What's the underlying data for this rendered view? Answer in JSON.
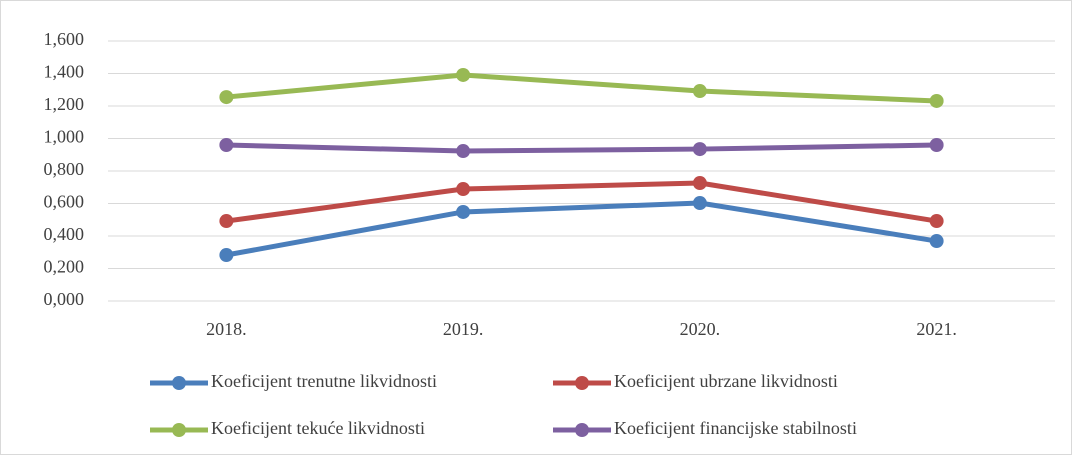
{
  "chart_data": {
    "type": "line",
    "categories": [
      "2018.",
      "2019.",
      "2020.",
      "2021."
    ],
    "series": [
      {
        "name": "Koeficijent trenutne likvidnosti",
        "color": "#4a7ebb",
        "values": [
          0.283,
          0.548,
          0.603,
          0.369
        ]
      },
      {
        "name": "Koeficijent ubrzane likvidnosti",
        "color": "#be4b48",
        "values": [
          0.492,
          0.689,
          0.726,
          0.492
        ]
      },
      {
        "name": "Koeficijent tekuće likvidnosti",
        "color": "#98b954",
        "values": [
          1.255,
          1.391,
          1.292,
          1.231
        ]
      },
      {
        "name": "Koeficijent financijske stabilnosti",
        "color": "#7d60a0",
        "values": [
          0.96,
          0.923,
          0.935,
          0.96
        ]
      }
    ],
    "ylim": [
      0,
      1.6
    ],
    "yticks": [
      {
        "value": 0,
        "label": "0,000"
      },
      {
        "value": 0.2,
        "label": "0,200"
      },
      {
        "value": 0.4,
        "label": "0,400"
      },
      {
        "value": 0.6,
        "label": "0,600"
      },
      {
        "value": 0.8,
        "label": "0,800"
      },
      {
        "value": 1,
        "label": "1,000"
      },
      {
        "value": 1.2,
        "label": "1,200"
      },
      {
        "value": 1.4,
        "label": "1,400"
      },
      {
        "value": 1.6,
        "label": "1,600"
      }
    ],
    "grid": true
  }
}
